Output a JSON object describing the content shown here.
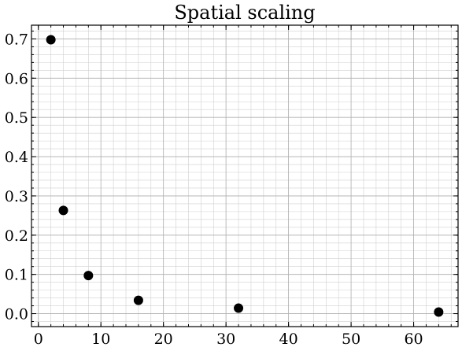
{
  "chart_data": {
    "type": "scatter",
    "title": "Spatial scaling",
    "xlabel": "",
    "ylabel": "",
    "xlim": [
      -1.1,
      67.1
    ],
    "ylim": [
      -0.033,
      0.735
    ],
    "x_ticks": [
      0,
      10,
      20,
      30,
      40,
      50,
      60
    ],
    "y_ticks": [
      0.0,
      0.1,
      0.2,
      0.3,
      0.4,
      0.5,
      0.6,
      0.7
    ],
    "x_tick_labels": [
      "0",
      "10",
      "20",
      "30",
      "40",
      "50",
      "60"
    ],
    "y_tick_labels": [
      "0.0",
      "0.1",
      "0.2",
      "0.3",
      "0.4",
      "0.5",
      "0.6",
      "0.7"
    ],
    "grid": true,
    "series": [
      {
        "x": [
          2,
          4,
          8,
          16,
          32,
          64
        ],
        "y": [
          0.698,
          0.263,
          0.097,
          0.034,
          0.014,
          0.004
        ],
        "color": "#000000"
      }
    ]
  }
}
